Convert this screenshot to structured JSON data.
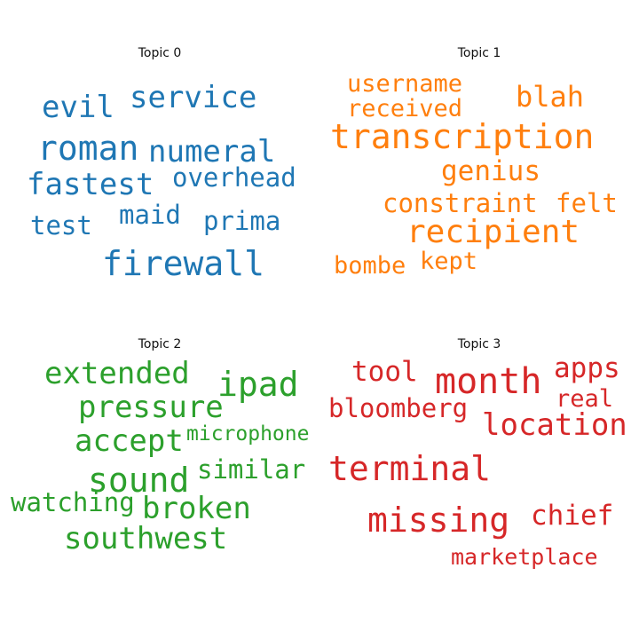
{
  "topics": [
    {
      "title": "Topic 0",
      "color": "#1f77b4",
      "words": [
        "evil",
        "service",
        "roman",
        "numeral",
        "fastest",
        "overhead",
        "test",
        "maid",
        "prima",
        "firewall"
      ]
    },
    {
      "title": "Topic 1",
      "color": "#ff7f0e",
      "words": [
        "username",
        "blah",
        "received",
        "transcription",
        "genius",
        "constraint",
        "felt",
        "recipient",
        "bombe",
        "kept"
      ]
    },
    {
      "title": "Topic 2",
      "color": "#2ca02c",
      "words": [
        "extended",
        "ipad",
        "pressure",
        "accept",
        "microphone",
        "sound",
        "similar",
        "watching",
        "broken",
        "southwest"
      ]
    },
    {
      "title": "Topic 3",
      "color": "#d62728",
      "words": [
        "tool",
        "month",
        "apps",
        "real",
        "bloomberg",
        "location",
        "terminal",
        "missing",
        "chief",
        "marketplace"
      ]
    }
  ]
}
